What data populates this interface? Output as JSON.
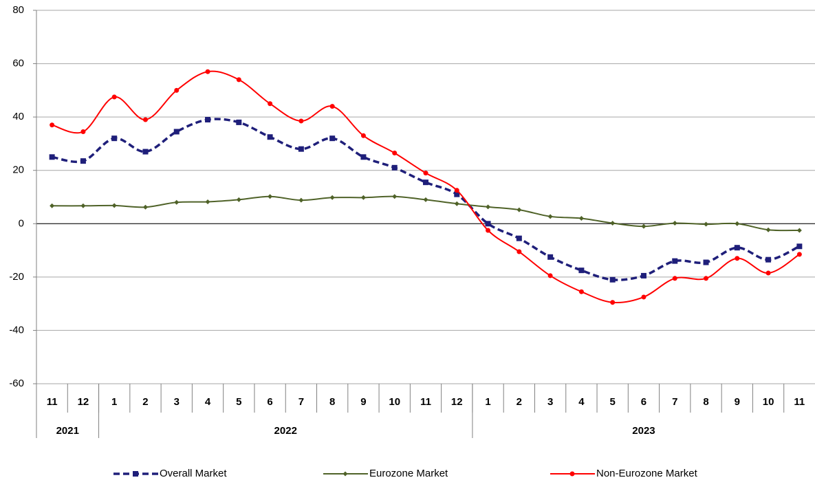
{
  "chart_data": {
    "type": "line",
    "categories": [
      "11",
      "12",
      "1",
      "2",
      "3",
      "4",
      "5",
      "6",
      "7",
      "8",
      "9",
      "10",
      "11",
      "12",
      "1",
      "2",
      "3",
      "4",
      "5",
      "6",
      "7",
      "8",
      "9",
      "10",
      "11"
    ],
    "years": [
      "2021",
      "2022",
      "2023"
    ],
    "ylim": [
      -60,
      80
    ],
    "yticks": [
      -60,
      -40,
      -20,
      0,
      20,
      40,
      60,
      80
    ],
    "grid": true,
    "series": [
      {
        "name": "Overall Market",
        "color": "#1f1f7a",
        "dash": true,
        "marker": "square",
        "values": [
          25,
          23.5,
          32,
          27,
          34.5,
          39,
          38,
          32.5,
          28,
          32,
          25,
          21,
          15.5,
          11,
          0,
          -5.5,
          -12.5,
          -17.5,
          -21,
          -19.5,
          -14,
          -14.5,
          -9,
          -13.5,
          -8.5
        ]
      },
      {
        "name": "Eurozone Market",
        "color": "#4f6228",
        "dash": false,
        "marker": "diamond",
        "values": [
          6.7,
          6.7,
          6.8,
          6.2,
          8,
          8.2,
          9,
          10.2,
          8.8,
          9.8,
          9.8,
          10.2,
          9,
          7.5,
          6.3,
          5.2,
          2.7,
          2,
          0.2,
          -1,
          0.2,
          -0.2,
          0,
          -2.3,
          -2.5
        ]
      },
      {
        "name": "Non-Eurozone Market",
        "color": "#ff0000",
        "dash": false,
        "marker": "circle",
        "values": [
          37,
          34.5,
          47.5,
          39,
          50,
          57,
          54,
          45,
          38.5,
          44,
          33,
          26.5,
          19,
          12.5,
          -2.5,
          -10.5,
          -19.5,
          -25.5,
          -29.5,
          -27.5,
          -20.5,
          -20.5,
          -13,
          -18.5,
          -11.5
        ]
      }
    ],
    "legend": "bottom"
  }
}
